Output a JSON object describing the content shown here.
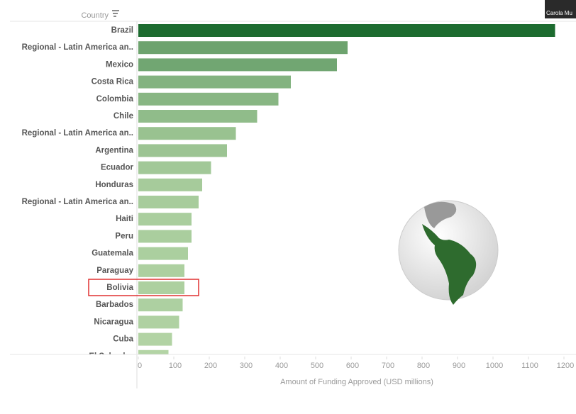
{
  "chart_data": {
    "type": "barh",
    "column_header": "Country",
    "x_label": "Amount of Funding Approved (USD millions)",
    "overlay_label": "Carola Mu",
    "categories": [
      "Brazil",
      "Regional - Latin America an..",
      "Mexico",
      "Costa Rica",
      "Colombia",
      "Chile",
      "Regional - Latin America an..",
      "Argentina",
      "Ecuador",
      "Honduras",
      "Regional - Latin America an..",
      "Haiti",
      "Peru",
      "Guatemala",
      "Paraguay",
      "Bolivia",
      "Barbados",
      "Nicaragua",
      "Cuba",
      "El Salvador"
    ],
    "values": [
      1175,
      590,
      560,
      430,
      395,
      335,
      275,
      250,
      205,
      180,
      170,
      150,
      150,
      140,
      130,
      130,
      125,
      115,
      95,
      85
    ],
    "color_scale": [
      "#b3d4a5",
      "#1c6b2f"
    ],
    "xlim": [
      0,
      1200
    ],
    "xticks": [
      0,
      100,
      200,
      300,
      400,
      500,
      600,
      700,
      800,
      900,
      1000,
      1100,
      1200
    ],
    "grid": false
  }
}
